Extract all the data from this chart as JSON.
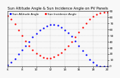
{
  "title": "Sun Altitude Angle & Sun Incidence Angle on PV Panels",
  "background_color": "#f8f8f8",
  "grid_color": "#bbbbbb",
  "ylim": [
    0,
    90
  ],
  "xlim": [
    6,
    20
  ],
  "blue_label": "Sun Altitude Angle",
  "red_label": "Sun Incidence Angle",
  "blue_x": [
    6.0,
    6.5,
    7.0,
    7.5,
    8.0,
    8.5,
    9.0,
    9.5,
    10.0,
    10.5,
    11.0,
    11.5,
    12.0,
    12.5,
    13.0,
    13.5,
    14.0,
    14.5,
    15.0,
    15.5,
    16.0,
    16.5,
    17.0,
    17.5,
    18.0,
    18.5,
    19.0,
    19.5,
    20.0
  ],
  "blue_y": [
    2,
    6,
    12,
    19,
    26,
    33,
    40,
    47,
    53,
    58,
    62,
    65,
    67,
    67,
    66,
    63,
    59,
    54,
    48,
    41,
    33,
    25,
    18,
    11,
    6,
    2,
    0,
    0,
    0
  ],
  "red_x": [
    6.0,
    6.5,
    7.0,
    7.5,
    8.0,
    8.5,
    9.0,
    9.5,
    10.0,
    10.5,
    11.0,
    11.5,
    12.0,
    12.5,
    13.0,
    13.5,
    14.0,
    14.5,
    15.0,
    15.5,
    16.0,
    16.5,
    17.0,
    17.5,
    18.0,
    18.5,
    19.0,
    19.5,
    20.0
  ],
  "red_y": [
    82,
    76,
    68,
    59,
    50,
    41,
    33,
    26,
    21,
    17,
    14,
    13,
    13,
    15,
    18,
    22,
    27,
    33,
    40,
    47,
    55,
    63,
    70,
    76,
    81,
    84,
    86,
    87,
    87
  ],
  "title_fontsize": 3.8,
  "tick_fontsize": 3.0,
  "marker_size": 1.5,
  "legend_fontsize": 3.0,
  "yticks": [
    0,
    10,
    20,
    30,
    40,
    50,
    60,
    70,
    80,
    90
  ],
  "xticks": [
    6,
    8,
    10,
    12,
    14,
    16,
    18,
    20
  ]
}
